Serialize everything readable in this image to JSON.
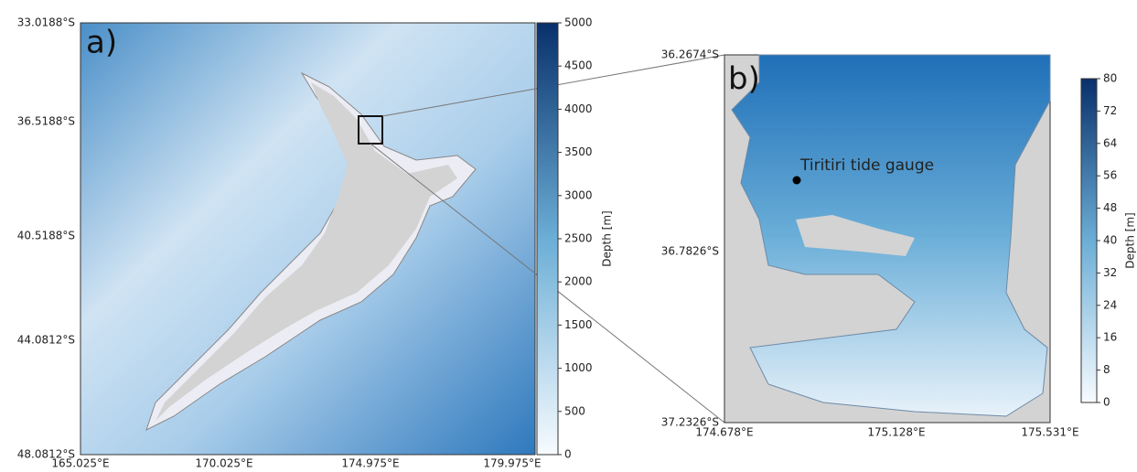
{
  "panel_a": {
    "label": "a)",
    "lat_ticks": [
      "33.0188°S",
      "36.5188°S",
      "40.5188°S",
      "44.0812°S",
      "48.0812°S"
    ],
    "lon_ticks": [
      "165.025°E",
      "170.025°E",
      "174.975°E",
      "179.975°E"
    ],
    "colorbar": {
      "label": "Depth [m]",
      "ticks": [
        0,
        500,
        1000,
        1500,
        2000,
        2500,
        3000,
        3500,
        4000,
        4500,
        5000
      ]
    }
  },
  "panel_b": {
    "label": "b)",
    "lat_ticks": [
      "36.2674°S",
      "36.7826°S",
      "37.2326°S"
    ],
    "lon_ticks": [
      "174.678°E",
      "175.128°E",
      "175.531°E"
    ],
    "annotation": "Tiritiri tide gauge",
    "colorbar": {
      "label": "Depth [m]",
      "ticks": [
        0,
        8,
        16,
        24,
        32,
        40,
        48,
        56,
        64,
        72,
        80
      ]
    }
  }
}
